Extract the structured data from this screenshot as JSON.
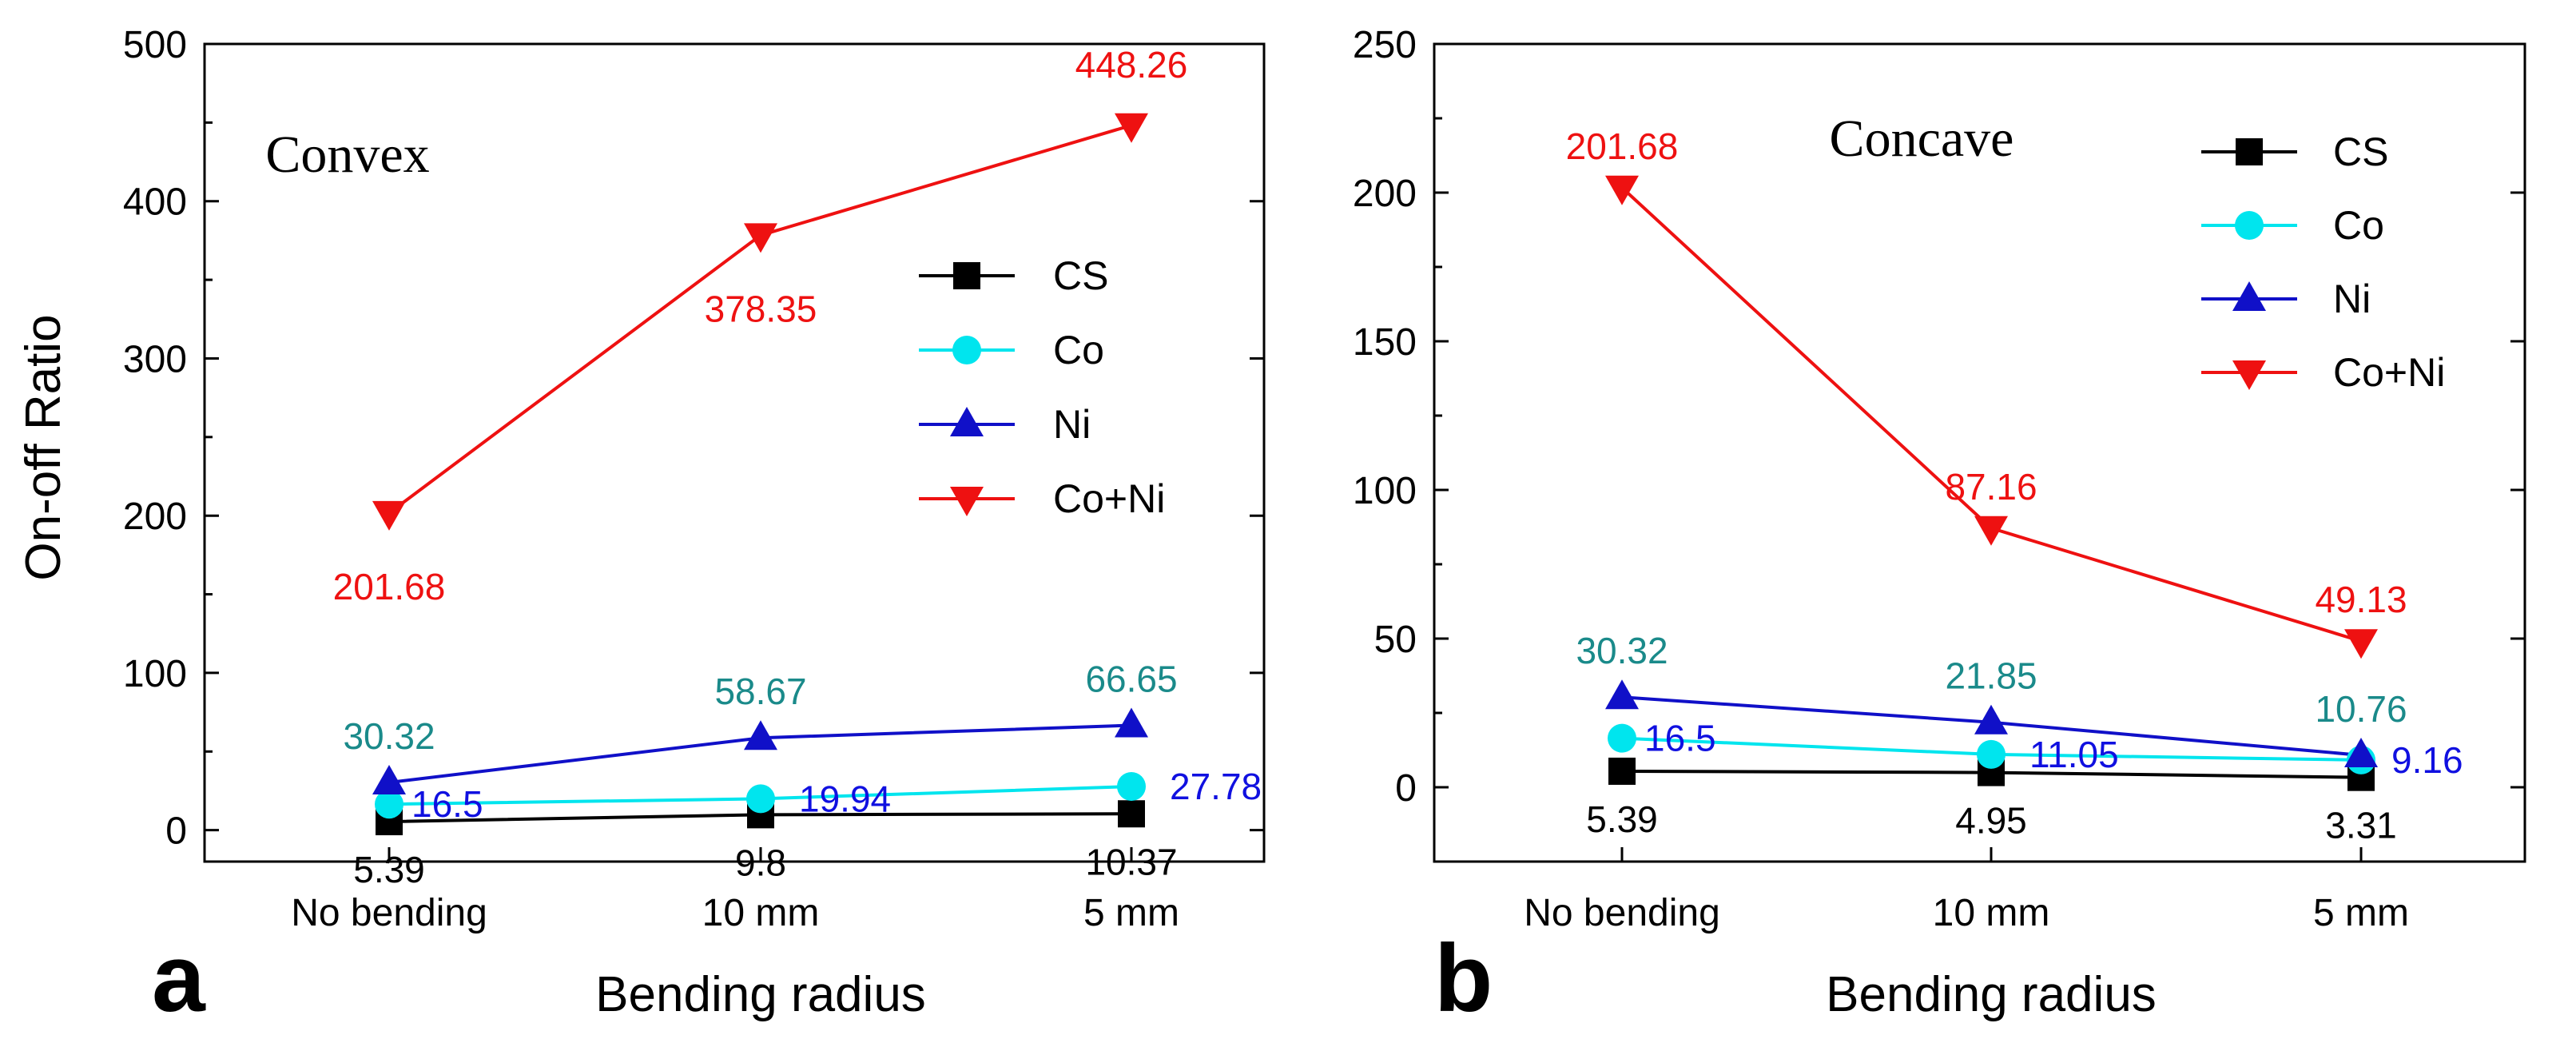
{
  "figure": {
    "ylabel": "On-off Ratio"
  },
  "chart_data": [
    {
      "type": "line",
      "panel_label": "a",
      "title": "Convex",
      "xlabel": "Bending radius",
      "ylabel": "On-off Ratio",
      "categories": [
        "No bending",
        "10 mm",
        "5 mm"
      ],
      "ylim": [
        -20,
        500
      ],
      "yticks": [
        0,
        100,
        200,
        300,
        400,
        500
      ],
      "legend_position": "center-right",
      "series": [
        {
          "name": "CS",
          "color": "#000000",
          "marker": "square",
          "values": [
            5.39,
            9.8,
            10.37
          ],
          "labels": [
            "5.39",
            "9.8",
            "10.37"
          ],
          "label_color": "#000000"
        },
        {
          "name": "Co",
          "color": "#00e5ee",
          "marker": "circle",
          "values": [
            16.5,
            19.94,
            27.78
          ],
          "labels": [
            "16.5",
            "19.94",
            "27.78"
          ],
          "label_color": "#1010e0"
        },
        {
          "name": "Ni",
          "color": "#1010c8",
          "marker": "triangle-up",
          "values": [
            30.32,
            58.67,
            66.65
          ],
          "labels": [
            "30.32",
            "58.67",
            "66.65"
          ],
          "label_color": "#1a8a8a"
        },
        {
          "name": "Co+Ni",
          "color": "#ee1111",
          "marker": "triangle-down",
          "values": [
            201.68,
            378.35,
            448.26
          ],
          "labels": [
            "201.68",
            "378.35",
            "448.26"
          ],
          "label_color": "#ee1111"
        }
      ]
    },
    {
      "type": "line",
      "panel_label": "b",
      "title": "Concave",
      "xlabel": "Bending radius",
      "ylabel": "",
      "categories": [
        "No bending",
        "10 mm",
        "5 mm"
      ],
      "ylim": [
        -25,
        250
      ],
      "yticks": [
        0,
        50,
        100,
        150,
        200,
        250
      ],
      "legend_position": "top-right",
      "series": [
        {
          "name": "CS",
          "color": "#000000",
          "marker": "square",
          "values": [
            5.39,
            4.95,
            3.31
          ],
          "labels": [
            "5.39",
            "4.95",
            "3.31"
          ],
          "label_color": "#000000"
        },
        {
          "name": "Co",
          "color": "#00e5ee",
          "marker": "circle",
          "values": [
            16.5,
            11.05,
            9.16
          ],
          "labels": [
            "16.5",
            "11.05",
            "9.16"
          ],
          "label_color": "#1010e0"
        },
        {
          "name": "Ni",
          "color": "#1010c8",
          "marker": "triangle-up",
          "values": [
            30.32,
            21.85,
            10.76
          ],
          "labels": [
            "30.32",
            "21.85",
            "10.76"
          ],
          "label_color": "#1a8a8a"
        },
        {
          "name": "Co+Ni",
          "color": "#ee1111",
          "marker": "triangle-down",
          "values": [
            201.68,
            87.16,
            49.13
          ],
          "labels": [
            "201.68",
            "87.16",
            "49.13"
          ],
          "label_color": "#ee1111"
        }
      ]
    }
  ]
}
